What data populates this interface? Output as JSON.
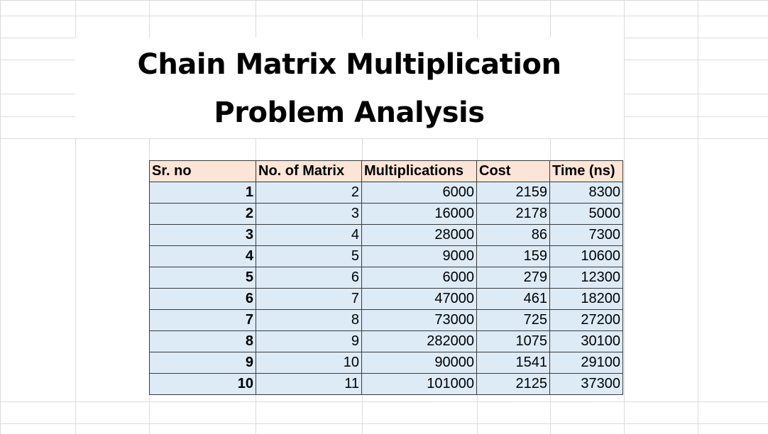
{
  "title": {
    "line1": "Chain Matrix Multiplication",
    "line2": "Problem Analysis"
  },
  "table": {
    "headers": [
      "Sr. no",
      "No. of Matrix",
      "Multiplications",
      "Cost",
      "Time (ns)"
    ],
    "rows": [
      [
        "1",
        "2",
        "6000",
        "2159",
        "8300"
      ],
      [
        "2",
        "3",
        "16000",
        "2178",
        "5000"
      ],
      [
        "3",
        "4",
        "28000",
        "86",
        "7300"
      ],
      [
        "4",
        "5",
        "9000",
        "159",
        "10600"
      ],
      [
        "5",
        "6",
        "6000",
        "279",
        "12300"
      ],
      [
        "6",
        "7",
        "47000",
        "461",
        "18200"
      ],
      [
        "7",
        "8",
        "73000",
        "725",
        "27200"
      ],
      [
        "8",
        "9",
        "282000",
        "1075",
        "30100"
      ],
      [
        "9",
        "10",
        "90000",
        "1541",
        "29100"
      ],
      [
        "10",
        "11",
        "101000",
        "2125",
        "37300"
      ]
    ]
  },
  "colors": {
    "header_fill": "#fce4d6",
    "cell_fill": "#ddebf7",
    "gridline": "#dcdcdc"
  }
}
